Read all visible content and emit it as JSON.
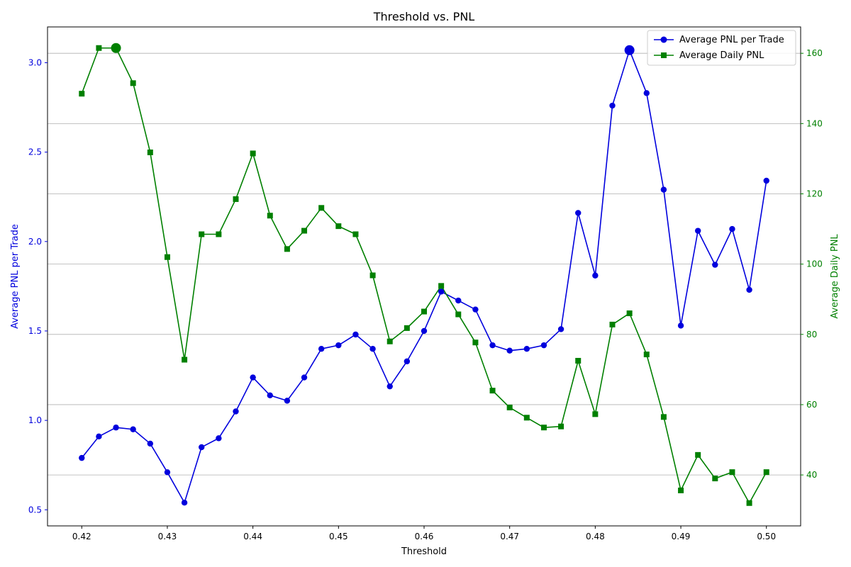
{
  "chart_data": {
    "type": "line",
    "title": "Threshold vs. PNL",
    "xlabel": "Threshold",
    "ylabel_left": "Average PNL per Trade",
    "ylabel_right": "Average Daily PNL",
    "xlim": [
      0.416,
      0.504
    ],
    "ylim_left": [
      0.41,
      3.2
    ],
    "ylim_right": [
      25.5,
      167.5
    ],
    "x_ticks": [
      "0.42",
      "0.43",
      "0.44",
      "0.45",
      "0.46",
      "0.47",
      "0.48",
      "0.49",
      "0.50"
    ],
    "y_left_ticks": [
      "0.5",
      "1.0",
      "1.5",
      "2.0",
      "2.5",
      "3.0"
    ],
    "y_right_ticks": [
      "40",
      "60",
      "80",
      "100",
      "120",
      "140",
      "160"
    ],
    "grid": "horizontal lines at right-axis ticks",
    "legend_position": "top-right",
    "x": [
      0.42,
      0.422,
      0.424,
      0.426,
      0.428,
      0.43,
      0.432,
      0.434,
      0.436,
      0.438,
      0.44,
      0.442,
      0.444,
      0.446,
      0.448,
      0.45,
      0.452,
      0.454,
      0.456,
      0.458,
      0.46,
      0.462,
      0.464,
      0.466,
      0.468,
      0.47,
      0.472,
      0.474,
      0.476,
      0.478,
      0.48,
      0.482,
      0.484,
      0.486,
      0.488,
      0.49,
      0.492,
      0.494,
      0.496,
      0.498,
      0.5
    ],
    "series": [
      {
        "name": "Average PNL per Trade",
        "axis": "left",
        "color": "#0000dd",
        "marker": "circle",
        "highlight_x": 0.484,
        "values": [
          0.79,
          0.91,
          0.96,
          0.95,
          0.87,
          0.71,
          0.54,
          0.85,
          0.9,
          1.05,
          1.24,
          1.14,
          1.11,
          1.24,
          1.4,
          1.42,
          1.48,
          1.4,
          1.19,
          1.33,
          1.5,
          1.72,
          1.67,
          1.62,
          1.42,
          1.39,
          1.4,
          1.42,
          1.51,
          2.16,
          1.81,
          2.76,
          3.07,
          2.83,
          2.29,
          1.53,
          2.06,
          1.87,
          2.07,
          1.73,
          2.34
        ]
      },
      {
        "name": "Average Daily PNL",
        "axis": "right",
        "color": "#008000",
        "marker": "square",
        "highlight_x": 0.424,
        "values": [
          148.5,
          161.5,
          161.5,
          151.5,
          131.8,
          102.0,
          72.8,
          108.5,
          108.5,
          118.5,
          131.5,
          113.8,
          104.3,
          109.5,
          116.0,
          110.8,
          108.5,
          96.8,
          78.0,
          81.8,
          86.5,
          93.8,
          85.7,
          77.7,
          64.0,
          59.2,
          56.3,
          53.5,
          53.8,
          72.5,
          57.3,
          82.8,
          86.0,
          74.3,
          56.5,
          35.6,
          45.7,
          39.0,
          40.8,
          32.0,
          40.8
        ]
      }
    ]
  }
}
